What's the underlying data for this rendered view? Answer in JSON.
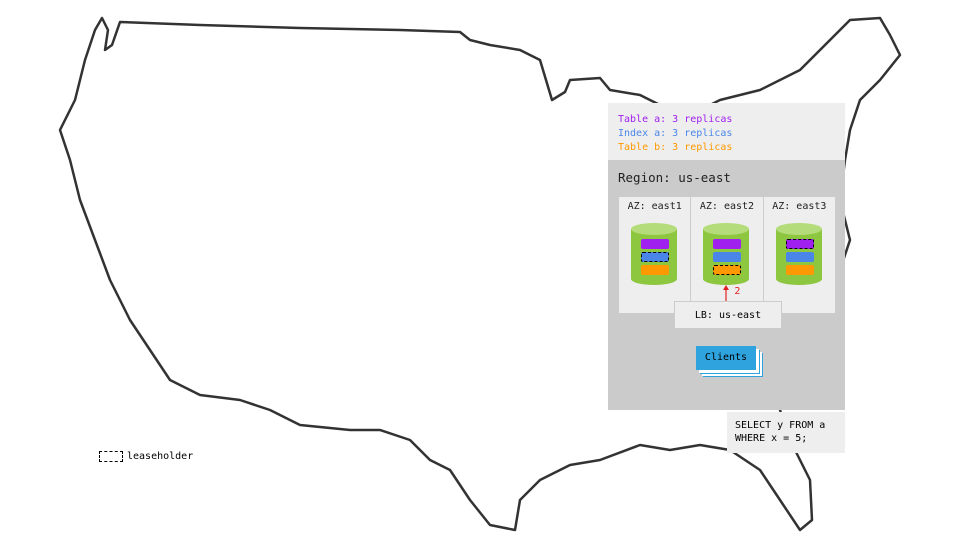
{
  "legend": [
    {
      "text": "Table a: 3 replicas",
      "color": "#a020f0"
    },
    {
      "text": "Index a: 3 replicas",
      "color": "#4a86e8"
    },
    {
      "text": "Table b: 3 replicas",
      "color": "#ff9900"
    }
  ],
  "region": {
    "title": "Region: us-east",
    "azs": [
      {
        "label": "AZ: east1",
        "leaseholder": "index-a"
      },
      {
        "label": "AZ: east2",
        "leaseholder": "table-b"
      },
      {
        "label": "AZ: east3",
        "leaseholder": "table-a"
      }
    ],
    "arrow_label": "2",
    "lb": "LB: us-east",
    "clients": "Clients"
  },
  "query": [
    "SELECT y FROM a",
    "WHERE x = 5;"
  ],
  "leaseholder_label": "leaseholder",
  "colors": {
    "table_a": "#a020f0",
    "index_a": "#4a86e8",
    "table_b": "#ff9900",
    "db": "#8dc63f",
    "arrow": "#e02020"
  }
}
